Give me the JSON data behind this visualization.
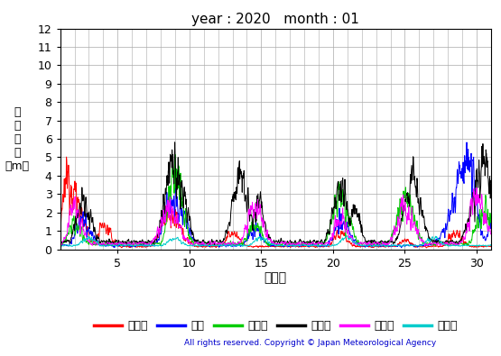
{
  "title": "year : 2020   month : 01",
  "ylabel_text": "有\n義\n波\n高\n（m）",
  "xlabel": "（日）",
  "copyright": "All rights reserved. Copyright © Japan Meteorological Agency",
  "ylim": [
    0,
    12
  ],
  "xlim": [
    1,
    31
  ],
  "yticks": [
    0,
    1,
    2,
    3,
    4,
    5,
    6,
    7,
    8,
    9,
    10,
    11,
    12
  ],
  "xticks": [
    5,
    10,
    15,
    20,
    25,
    30
  ],
  "stations": [
    "上ノ国",
    "唐桑",
    "石廀崎",
    "経ヶ崎",
    "生月島",
    "屋久島"
  ],
  "colors": [
    "#ff0000",
    "#0000ff",
    "#00cc00",
    "#000000",
    "#ff00ff",
    "#00cccc"
  ],
  "background_color": "#ffffff",
  "grid_color": "#aaaaaa"
}
